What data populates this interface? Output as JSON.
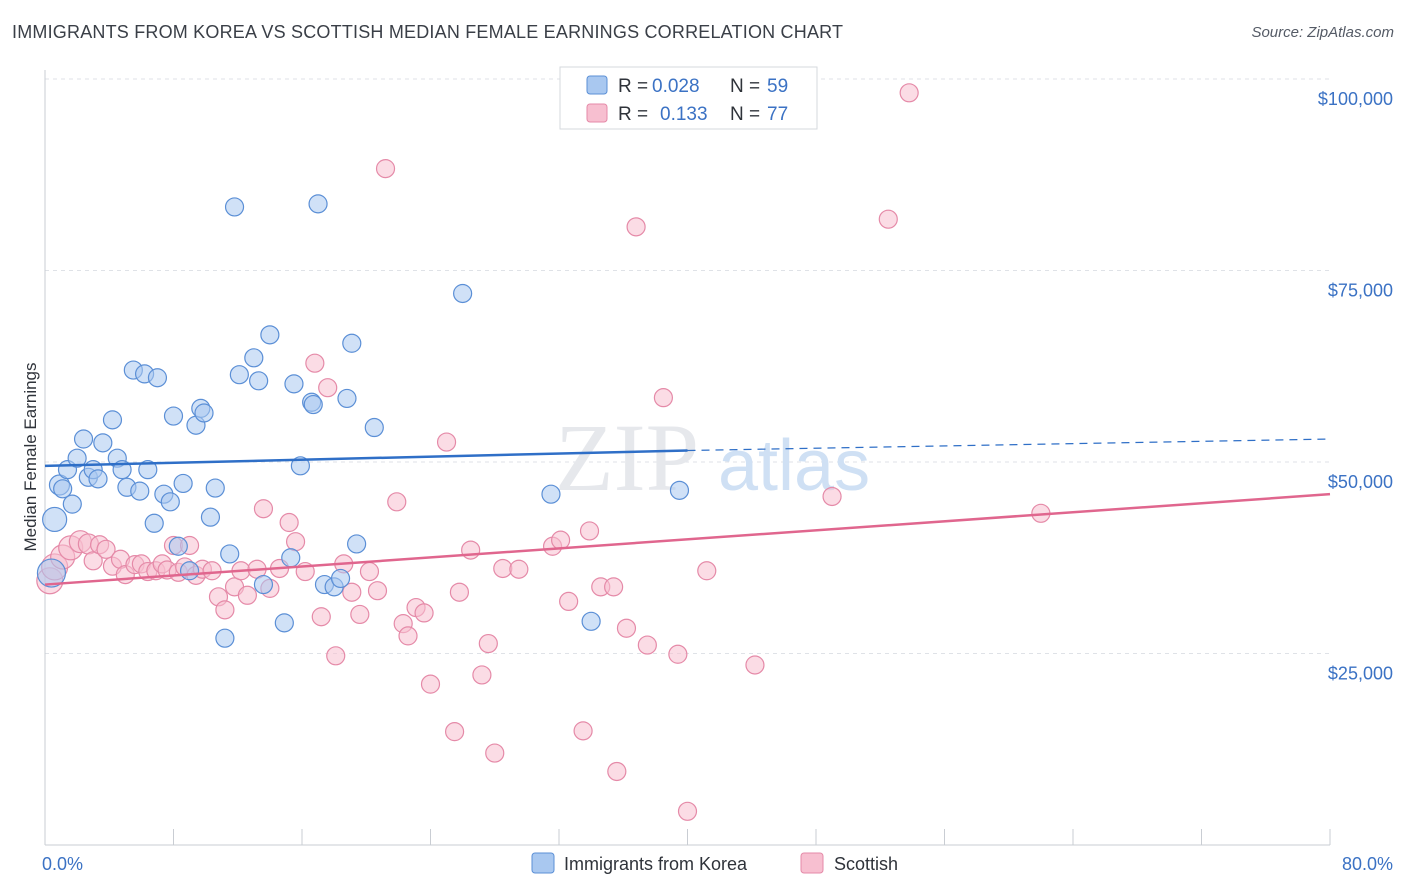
{
  "header": {
    "title": "IMMIGRANTS FROM KOREA VS SCOTTISH MEDIAN FEMALE EARNINGS CORRELATION CHART",
    "source": "Source: ZipAtlas.com"
  },
  "watermark": {
    "zip": "ZIP",
    "atlas": "atlas"
  },
  "legend": {
    "korea": {
      "r_label": "R =",
      "r_value": "0.028",
      "n_label": "N =",
      "n_value": "59"
    },
    "scottish": {
      "r_label": "R =",
      "r_value": "0.133",
      "n_label": "N =",
      "n_value": "77"
    }
  },
  "chart_data": {
    "type": "scatter",
    "title": "IMMIGRANTS FROM KOREA VS SCOTTISH MEDIAN FEMALE EARNINGS CORRELATION CHART",
    "xlabel": "",
    "ylabel": "Median Female Earnings",
    "xlim": [
      0,
      80
    ],
    "ylim": [
      0,
      105000
    ],
    "x_tick_labels": [
      "0.0%",
      "80.0%"
    ],
    "y_ticks": [
      {
        "value": 25000,
        "label": "$25,000"
      },
      {
        "value": 50000,
        "label": "$50,000"
      },
      {
        "value": 75000,
        "label": "$75,000"
      },
      {
        "value": 100000,
        "label": "$100,000"
      }
    ],
    "grid": true,
    "legend_position": "top-center",
    "colors": {
      "korea_fill": "#a9c8f0",
      "korea_stroke": "#5b8fd6",
      "korea_line": "#2f6fc7",
      "scottish_fill": "#f7bfd0",
      "scottish_stroke": "#e58aa8",
      "scottish_line": "#e0668e",
      "tick": "#3b72c4"
    },
    "series": [
      {
        "name": "Immigrants from Korea",
        "trend": {
          "x0": 0,
          "y0": 49500,
          "x1": 40,
          "y1": 51500,
          "dash_x1": 80,
          "dash_y1": 53000
        },
        "points": [
          [
            0.4,
            35500,
            14
          ],
          [
            0.6,
            42500,
            12
          ],
          [
            0.9,
            47000,
            10
          ],
          [
            1.1,
            46500,
            9
          ],
          [
            1.4,
            49000,
            9
          ],
          [
            1.7,
            44500,
            9
          ],
          [
            2.0,
            50500,
            9
          ],
          [
            2.4,
            53000,
            9
          ],
          [
            2.7,
            48000,
            9
          ],
          [
            3.0,
            49000,
            9
          ],
          [
            3.3,
            47800,
            9
          ],
          [
            3.6,
            52500,
            9
          ],
          [
            4.2,
            55500,
            9
          ],
          [
            4.5,
            50500,
            9
          ],
          [
            4.8,
            49000,
            9
          ],
          [
            5.1,
            46700,
            9
          ],
          [
            5.5,
            62000,
            9
          ],
          [
            5.9,
            46200,
            9
          ],
          [
            6.2,
            61500,
            9
          ],
          [
            6.4,
            49000,
            9
          ],
          [
            6.8,
            42000,
            9
          ],
          [
            7.0,
            61000,
            9
          ],
          [
            7.4,
            45800,
            9
          ],
          [
            7.8,
            44800,
            9
          ],
          [
            8.0,
            56000,
            9
          ],
          [
            8.3,
            39000,
            9
          ],
          [
            8.6,
            47200,
            9
          ],
          [
            9.0,
            35800,
            9
          ],
          [
            9.4,
            54800,
            9
          ],
          [
            9.7,
            57000,
            9
          ],
          [
            9.9,
            56400,
            9
          ],
          [
            10.3,
            42800,
            9
          ],
          [
            10.6,
            46600,
            9
          ],
          [
            11.2,
            27000,
            9
          ],
          [
            11.5,
            38000,
            9
          ],
          [
            11.8,
            83300,
            9
          ],
          [
            12.1,
            61400,
            9
          ],
          [
            13.0,
            63600,
            9
          ],
          [
            13.3,
            60600,
            9
          ],
          [
            13.6,
            34000,
            9
          ],
          [
            14.0,
            66600,
            9
          ],
          [
            14.9,
            29000,
            9
          ],
          [
            15.3,
            37500,
            9
          ],
          [
            15.5,
            60200,
            9
          ],
          [
            15.9,
            49500,
            9
          ],
          [
            16.6,
            57800,
            9
          ],
          [
            16.7,
            57500,
            9
          ],
          [
            17.0,
            83700,
            9
          ],
          [
            17.4,
            34000,
            9
          ],
          [
            18.0,
            33700,
            9
          ],
          [
            18.4,
            34800,
            9
          ],
          [
            18.8,
            58300,
            9
          ],
          [
            19.1,
            65500,
            9
          ],
          [
            19.4,
            39300,
            9
          ],
          [
            20.5,
            54500,
            9
          ],
          [
            26.0,
            72000,
            9
          ],
          [
            31.5,
            45800,
            9
          ],
          [
            34.0,
            29200,
            9
          ],
          [
            39.5,
            46300,
            9
          ]
        ]
      },
      {
        "name": "Scottish",
        "trend": {
          "x0": 0,
          "y0": 34000,
          "x1": 80,
          "y1": 45800
        },
        "points": [
          [
            0.3,
            34500,
            13
          ],
          [
            0.6,
            36300,
            13
          ],
          [
            1.1,
            37600,
            12
          ],
          [
            1.6,
            38800,
            12
          ],
          [
            2.2,
            39600,
            11
          ],
          [
            2.7,
            39300,
            10
          ],
          [
            3.0,
            37100,
            9
          ],
          [
            3.4,
            39200,
            9
          ],
          [
            3.8,
            38600,
            9
          ],
          [
            4.2,
            36400,
            9
          ],
          [
            4.7,
            37300,
            9
          ],
          [
            5.0,
            35300,
            9
          ],
          [
            5.6,
            36600,
            9
          ],
          [
            6.0,
            36700,
            9
          ],
          [
            6.4,
            35700,
            9
          ],
          [
            6.9,
            35800,
            9
          ],
          [
            7.3,
            36700,
            9
          ],
          [
            7.6,
            35900,
            9
          ],
          [
            8.0,
            39100,
            9
          ],
          [
            8.3,
            35600,
            9
          ],
          [
            8.7,
            36300,
            9
          ],
          [
            9.0,
            39100,
            9
          ],
          [
            9.4,
            35200,
            9
          ],
          [
            9.8,
            36000,
            9
          ],
          [
            10.4,
            35800,
            9
          ],
          [
            10.8,
            32400,
            9
          ],
          [
            11.2,
            30700,
            9
          ],
          [
            11.8,
            33700,
            9
          ],
          [
            12.2,
            35800,
            9
          ],
          [
            12.6,
            32600,
            9
          ],
          [
            13.2,
            36000,
            9
          ],
          [
            13.6,
            43900,
            9
          ],
          [
            14.0,
            33500,
            9
          ],
          [
            14.6,
            36100,
            9
          ],
          [
            15.2,
            42100,
            9
          ],
          [
            15.6,
            39600,
            9
          ],
          [
            16.2,
            35700,
            9
          ],
          [
            16.8,
            62900,
            9
          ],
          [
            17.2,
            29800,
            9
          ],
          [
            17.6,
            59700,
            9
          ],
          [
            18.1,
            24700,
            9
          ],
          [
            18.6,
            36700,
            9
          ],
          [
            19.1,
            33000,
            9
          ],
          [
            19.6,
            30100,
            9
          ],
          [
            20.2,
            35700,
            9
          ],
          [
            20.7,
            33200,
            9
          ],
          [
            21.2,
            88300,
            9
          ],
          [
            21.9,
            44800,
            9
          ],
          [
            22.3,
            28900,
            9
          ],
          [
            22.6,
            27300,
            9
          ],
          [
            23.1,
            31000,
            9
          ],
          [
            23.6,
            30300,
            9
          ],
          [
            24.0,
            21000,
            9
          ],
          [
            25.0,
            52600,
            9
          ],
          [
            25.5,
            14800,
            9
          ],
          [
            25.8,
            33000,
            9
          ],
          [
            26.5,
            38500,
            9
          ],
          [
            27.2,
            22200,
            9
          ],
          [
            27.6,
            26300,
            9
          ],
          [
            28.0,
            12000,
            9
          ],
          [
            28.5,
            36100,
            9
          ],
          [
            29.5,
            36000,
            9
          ],
          [
            31.6,
            39000,
            9
          ],
          [
            32.1,
            39800,
            9
          ],
          [
            32.6,
            31800,
            9
          ],
          [
            33.5,
            14900,
            9
          ],
          [
            33.9,
            41000,
            9
          ],
          [
            34.6,
            33700,
            9
          ],
          [
            35.4,
            33700,
            9
          ],
          [
            35.6,
            9600,
            9
          ],
          [
            36.2,
            28300,
            9
          ],
          [
            36.8,
            80700,
            9
          ],
          [
            37.5,
            26100,
            9
          ],
          [
            38.5,
            58400,
            9
          ],
          [
            39.4,
            24900,
            9
          ],
          [
            40.0,
            4400,
            9
          ],
          [
            41.2,
            35800,
            9
          ]
        ]
      },
      {
        "name": "Scottish (far)",
        "points": [
          [
            44.2,
            23500,
            9
          ],
          [
            49.0,
            45500,
            9
          ],
          [
            52.5,
            81700,
            9
          ],
          [
            53.8,
            98200,
            9
          ],
          [
            62.0,
            43300,
            9
          ]
        ]
      }
    ]
  },
  "bottom_legend": {
    "korea_label": "Immigrants from Korea",
    "scottish_label": "Scottish"
  }
}
